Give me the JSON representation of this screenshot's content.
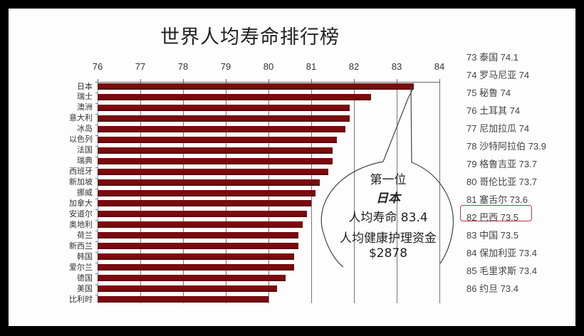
{
  "title": "世界人均寿命排行榜",
  "chart_data": {
    "type": "bar",
    "orientation": "horizontal",
    "title": "世界人均寿命排行榜",
    "xlabel": "",
    "ylabel": "",
    "xlim": [
      76,
      84
    ],
    "x_ticks": [
      "76",
      "77",
      "78",
      "79",
      "80",
      "81",
      "82",
      "83",
      "84"
    ],
    "axis_position": "top",
    "grid": true,
    "bar_color": "#7a0a0e",
    "categories": [
      "日本",
      "瑞士",
      "澳洲",
      "意大利",
      "冰岛",
      "以色列",
      "法国",
      "瑞典",
      "西班牙",
      "新加坡",
      "挪威",
      "加拿大",
      "安道尔",
      "奥地利",
      "荷兰",
      "新西兰",
      "韩国",
      "爱尔兰",
      "德国",
      "美国",
      "比利时"
    ],
    "values": [
      83.4,
      82.4,
      81.9,
      81.9,
      81.8,
      81.6,
      81.5,
      81.5,
      81.4,
      81.2,
      81.1,
      81.0,
      80.9,
      80.8,
      80.7,
      80.7,
      80.6,
      80.6,
      80.4,
      80.2,
      80.0
    ],
    "annotation": {
      "target": "日本",
      "lines": [
        "第一位",
        "日本",
        "人均寿命 83.4",
        "人均健康护理资金",
        "$2878"
      ]
    }
  },
  "callout": {
    "line1": "第一位",
    "line2": "日本",
    "line3": "人均寿命 83.4",
    "line4": "人均健康护理资金",
    "line5": "$2878"
  },
  "ranking_list": {
    "items": [
      {
        "rank": "73",
        "country": "泰国",
        "value": "74.1",
        "text": "73 泰国 74.1"
      },
      {
        "rank": "74",
        "country": "罗马尼亚",
        "value": "74",
        "text": "74 罗马尼亚 74"
      },
      {
        "rank": "75",
        "country": "秘鲁",
        "value": "74",
        "text": "75 秘鲁 74"
      },
      {
        "rank": "76",
        "country": "土耳其",
        "value": "74",
        "text": "76 土耳其 74"
      },
      {
        "rank": "77",
        "country": "尼加拉瓜",
        "value": "74",
        "text": "77 尼加拉瓜 74"
      },
      {
        "rank": "78",
        "country": "沙特阿拉伯",
        "value": "73.9",
        "text": "78 沙特阿拉伯 73.9"
      },
      {
        "rank": "79",
        "country": "格鲁吉亚",
        "value": "73.7",
        "text": "79 格鲁吉亚 73.7"
      },
      {
        "rank": "80",
        "country": "哥伦比亚",
        "value": "73.7",
        "text": "80 哥伦比亚 73.7"
      },
      {
        "rank": "81",
        "country": "塞舌尔",
        "value": "73.6",
        "text": "81 塞舌尔 73.6"
      },
      {
        "rank": "82",
        "country": "巴西",
        "value": "73.5",
        "text": "82 巴西 73.5"
      },
      {
        "rank": "83",
        "country": "中国",
        "value": "73.5",
        "text": "83 中国 73.5",
        "highlighted": true
      },
      {
        "rank": "84",
        "country": "保加利亚",
        "value": "73.4",
        "text": "84 保加利亚 73.4"
      },
      {
        "rank": "85",
        "country": "毛里求斯",
        "value": "73.4",
        "text": "85 毛里求斯 73.4"
      },
      {
        "rank": "86",
        "country": "约旦",
        "value": "73.4",
        "text": "86 约旦 73.4"
      }
    ],
    "highlight_color": "#c0394a"
  }
}
